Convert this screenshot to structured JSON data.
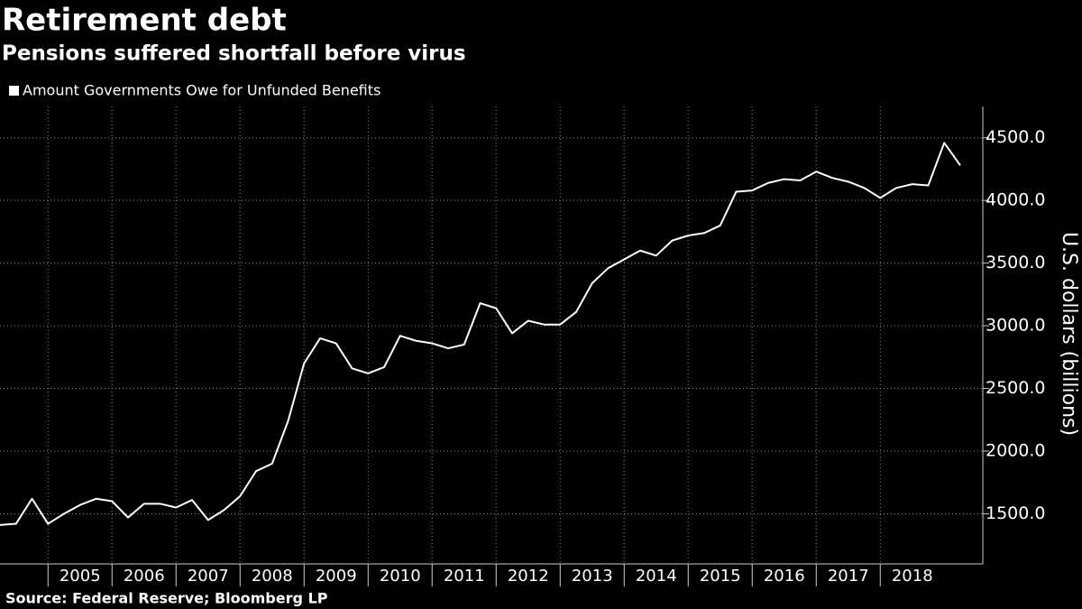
{
  "chart_data": {
    "type": "line",
    "title": "Retirement debt",
    "subtitle": "Pensions suffered shortfall before virus",
    "y_label": "U.S. dollars (billions)",
    "source": "Source: Federal Reserve; Bloomberg LP",
    "categories": [
      null,
      null,
      null,
      "2005",
      null,
      null,
      null,
      "2006",
      null,
      null,
      null,
      "2007",
      null,
      null,
      null,
      "2008",
      null,
      null,
      null,
      "2009",
      null,
      null,
      null,
      "2010",
      null,
      null,
      null,
      "2011",
      null,
      null,
      null,
      "2012",
      null,
      null,
      null,
      "2013",
      null,
      null,
      null,
      "2014",
      null,
      null,
      null,
      "2015",
      null,
      null,
      null,
      "2016",
      null,
      null,
      null,
      "2017",
      null,
      null,
      null,
      "2018",
      null,
      null,
      null,
      null,
      null
    ],
    "series": [
      {
        "name": "Amount Governments Owe for Unfunded Benefits",
        "color": "#ffffff",
        "values": [
          1410,
          1420,
          1620,
          1420,
          1500,
          1570,
          1620,
          1600,
          1470,
          1580,
          1580,
          1550,
          1610,
          1450,
          1530,
          1640,
          1840,
          1900,
          2240,
          2700,
          2900,
          2860,
          2660,
          2620,
          2670,
          2920,
          2880,
          2860,
          2820,
          2850,
          3180,
          3140,
          2940,
          3040,
          3010,
          3010,
          3110,
          3340,
          3460,
          3530,
          3600,
          3560,
          3680,
          3720,
          3740,
          3800,
          4070,
          4080,
          4140,
          4170,
          4160,
          4230,
          4180,
          4150,
          4100,
          4020,
          4100,
          4130,
          4120,
          4460,
          4280
        ]
      }
    ],
    "ylim": [
      1100,
      4750
    ],
    "yticks": [
      {
        "value": 1500,
        "label": "1500.0"
      },
      {
        "value": 2000,
        "label": "2000.0"
      },
      {
        "value": 2500,
        "label": "2500.0"
      },
      {
        "value": 3000,
        "label": "3000.0"
      },
      {
        "value": 3500,
        "label": "3500.0"
      },
      {
        "value": 4000,
        "label": "4000.0"
      },
      {
        "value": 4500,
        "label": "4500.0"
      }
    ],
    "grid": true
  }
}
